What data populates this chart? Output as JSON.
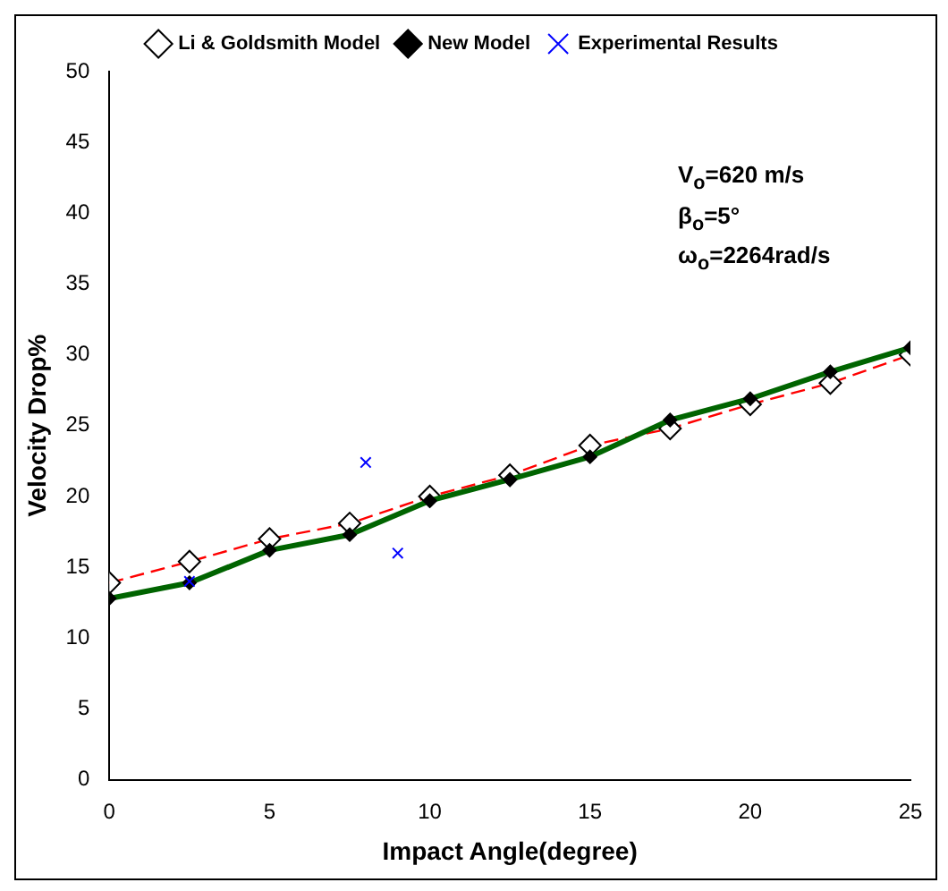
{
  "chart_data": {
    "type": "line",
    "xlabel": "Impact Angle(degree)",
    "ylabel": "Velocity Drop%",
    "xlim": [
      0,
      25
    ],
    "xticks": [
      0,
      5,
      10,
      15,
      20,
      25
    ],
    "ylim": [
      0,
      50
    ],
    "yticks": [
      0,
      5,
      10,
      15,
      20,
      25,
      30,
      35,
      40,
      45,
      50
    ],
    "grid": false,
    "legend": "top",
    "annotations": [
      "V$_{o}$=620 m/s",
      "β$_{o}$=5°",
      "ω$_{o}$=2264rad/s"
    ],
    "series": [
      {
        "name": "Li & Goldsmith Model",
        "color": "#ff0000",
        "line_style": "dashed",
        "marker": "diamond",
        "x": [
          0,
          2.5,
          5,
          7.5,
          10,
          12.5,
          15,
          17.5,
          20,
          22.5,
          25
        ],
        "values": [
          13.9,
          15.4,
          17.0,
          18.1,
          20.0,
          21.5,
          23.6,
          24.8,
          26.5,
          28.0,
          30.0
        ]
      },
      {
        "name": "New Model",
        "color": "#006400",
        "line_style": "solid",
        "marker": "diamond",
        "x": [
          0,
          2.5,
          5,
          7.5,
          10,
          12.5,
          15,
          17.5,
          20,
          22.5,
          25
        ],
        "values": [
          12.8,
          13.9,
          16.2,
          17.3,
          19.7,
          21.2,
          22.8,
          25.4,
          26.9,
          28.8,
          30.5
        ]
      },
      {
        "name": "Experimental Results",
        "type": "scatter",
        "color": "#0000ff",
        "marker": "cross",
        "x": [
          2.5,
          8,
          9
        ],
        "values": [
          14.0,
          22.4,
          16.0
        ]
      }
    ]
  }
}
